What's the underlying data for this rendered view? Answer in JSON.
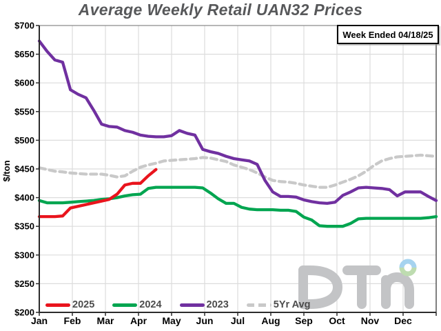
{
  "title": "Average Weekly Retail UAN32 Prices",
  "week_ended_label": "Week Ended 04/18/25",
  "logo": {
    "letters": "DTN",
    "letter_color": "#c3c4c6",
    "ring_top_color": "#a6d3ef",
    "ring_bottom_color": "#bedcb0"
  },
  "colors": {
    "title_text": "#57585a",
    "legend_text": "#4c4c4c",
    "gridline": "#dcdcdc",
    "axis": "#2b2b2b",
    "plot_border": "#8a8a8a"
  },
  "chart_data": {
    "type": "line",
    "title": "Average Weekly Retail UAN32 Prices",
    "xlabel": "",
    "ylabel": "$/ton",
    "ylim": [
      200,
      700
    ],
    "ytick_step": 50,
    "ytick_labels": [
      "$200",
      "$250",
      "$300",
      "$350",
      "$400",
      "$450",
      "$500",
      "$550",
      "$600",
      "$650",
      "$700"
    ],
    "x_months": [
      "Jan",
      "Feb",
      "Mar",
      "Apr",
      "May",
      "Jun",
      "Jul",
      "Aug",
      "Sep",
      "Oct",
      "Nov",
      "Dec"
    ],
    "x_unit": "week of year",
    "n_weeks": 52,
    "grid": true,
    "legend_position": "bottom-inside",
    "series": [
      {
        "name": "2025",
        "color": "#e9141d",
        "style": "solid",
        "values": [
          367,
          367,
          367,
          368,
          382,
          385,
          388,
          391,
          394,
          397,
          406,
          422,
          425,
          425,
          438,
          449
        ]
      },
      {
        "name": "2024",
        "color": "#00a550",
        "style": "solid",
        "values": [
          395,
          391,
          391,
          391,
          392,
          393,
          394,
          395,
          397,
          398,
          400,
          403,
          405,
          406,
          416,
          418,
          418,
          418,
          418,
          418,
          418,
          417,
          408,
          398,
          390,
          390,
          383,
          380,
          379,
          379,
          379,
          378,
          378,
          376,
          366,
          361,
          351,
          350,
          350,
          350,
          355,
          363,
          364,
          364,
          364,
          364,
          364,
          364,
          364,
          364,
          365,
          367
        ]
      },
      {
        "name": "2023",
        "color": "#7030a0",
        "style": "solid",
        "values": [
          673,
          655,
          640,
          636,
          588,
          580,
          574,
          552,
          528,
          524,
          523,
          517,
          514,
          509,
          507,
          506,
          506,
          508,
          517,
          512,
          509,
          484,
          480,
          477,
          472,
          468,
          466,
          464,
          458,
          430,
          410,
          402,
          402,
          401,
          396,
          393,
          391,
          390,
          392,
          404,
          410,
          417,
          418,
          417,
          416,
          414,
          403,
          410,
          410,
          410,
          402,
          395
        ]
      },
      {
        "name": "5Yr Avg",
        "color": "#c9c9c9",
        "style": "dashed",
        "values": [
          452,
          449,
          446,
          445,
          443,
          442,
          441,
          441,
          441,
          439,
          436,
          438,
          446,
          453,
          457,
          460,
          464,
          465,
          466,
          467,
          468,
          470,
          469,
          466,
          463,
          457,
          453,
          449,
          443,
          436,
          430,
          428,
          427,
          425,
          422,
          420,
          418,
          418,
          422,
          427,
          432,
          438,
          446,
          456,
          464,
          468,
          471,
          472,
          473,
          474,
          473,
          472
        ]
      }
    ]
  }
}
